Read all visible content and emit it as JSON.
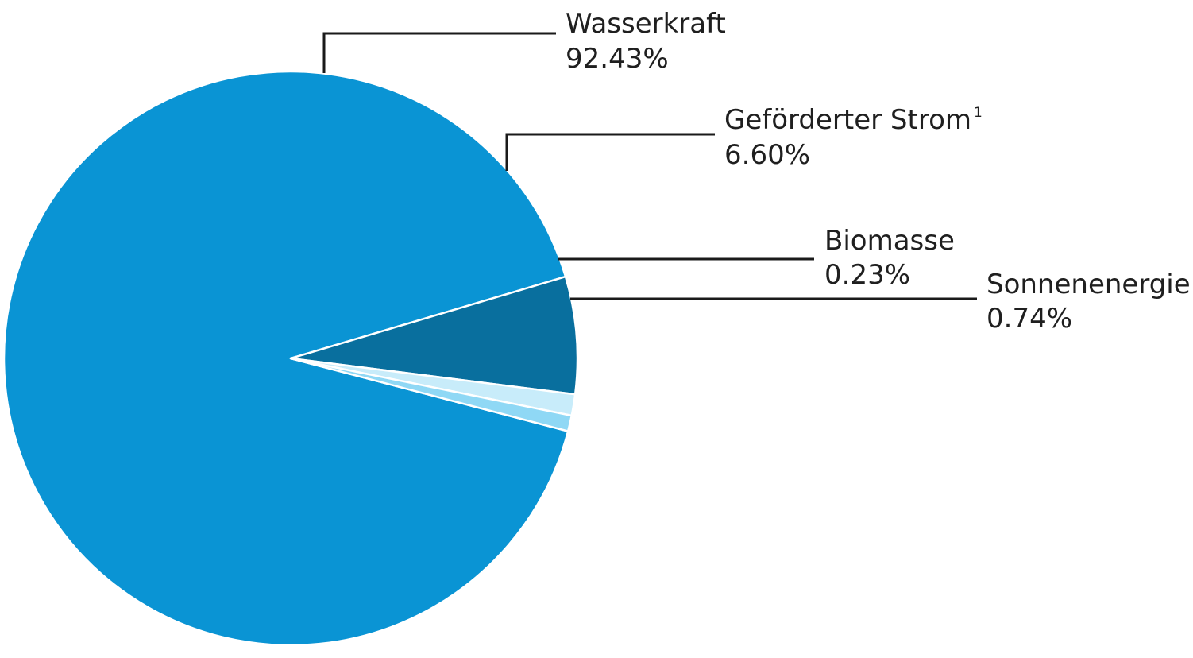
{
  "chart_data": {
    "type": "pie",
    "title": "",
    "slices": [
      {
        "id": "wasserkraft",
        "label": "Wasserkraft",
        "sup": "",
        "value": 92.43,
        "value_label": "92.43%",
        "color": "#0a94d4"
      },
      {
        "id": "gefoerderter-strom",
        "label": "Geförderter Strom",
        "sup": "1",
        "value": 6.6,
        "value_label": "6.60%",
        "color": "#096f9e"
      },
      {
        "id": "biomasse",
        "label": "Biomasse",
        "sup": "",
        "value": 0.23,
        "value_label": "0.23%",
        "color": "#c8ecfa"
      },
      {
        "id": "sonnenenergie",
        "label": "Sonnenenergie",
        "sup": "",
        "value": 0.74,
        "value_label": "0.74%",
        "color": "#8fd8f5"
      }
    ]
  }
}
